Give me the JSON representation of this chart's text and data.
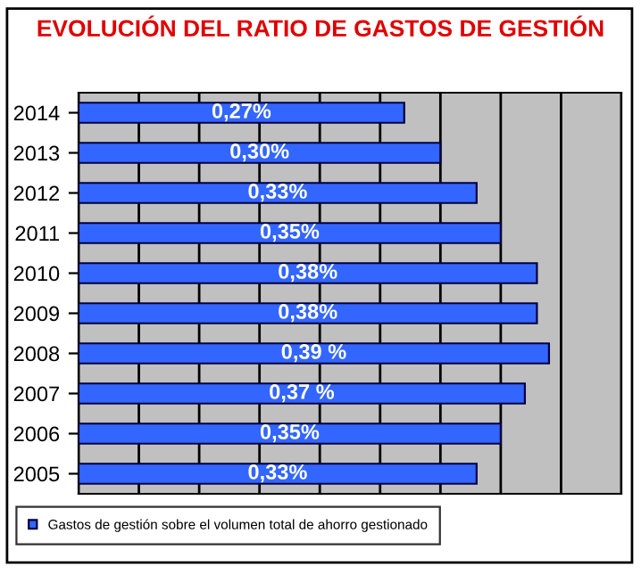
{
  "chart_data": {
    "type": "bar",
    "orientation": "horizontal",
    "title": "EVOLUCIÓN DEL RATIO DE GASTOS DE GESTIÓN",
    "categories": [
      "2014",
      "2013",
      "2012",
      "2011",
      "2010",
      "2009",
      "2008",
      "2007",
      "2006",
      "2005"
    ],
    "series": [
      {
        "name": "Gastos de gestión sobre el volumen total de ahorro gestionado",
        "color": "#3366ff",
        "values": [
          0.27,
          0.3,
          0.33,
          0.35,
          0.38,
          0.38,
          0.39,
          0.37,
          0.35,
          0.33
        ],
        "value_labels": [
          "0,27%",
          "0,30%",
          "0,33%",
          "0,35%",
          "0,38%",
          "0,38%",
          "0,39 %",
          "0,37 %",
          "0,35%",
          "0,33%"
        ]
      }
    ],
    "xlim": [
      0,
      0.45
    ],
    "xticks": [
      {
        "value": 0,
        "label": null
      },
      {
        "value": 0.05,
        "label": null
      },
      {
        "value": 0.1,
        "label": null
      },
      {
        "value": 0.15,
        "label": null
      },
      {
        "value": 0.2,
        "label": null
      },
      {
        "value": 0.25,
        "label": null
      },
      {
        "value": 0.3,
        "label": null
      },
      {
        "value": 0.35,
        "label": null
      },
      {
        "value": 0.4,
        "label": null
      },
      {
        "value": 0.45,
        "label": null
      }
    ],
    "tick_labels": "y",
    "grid": "x",
    "legend": "bottom"
  }
}
